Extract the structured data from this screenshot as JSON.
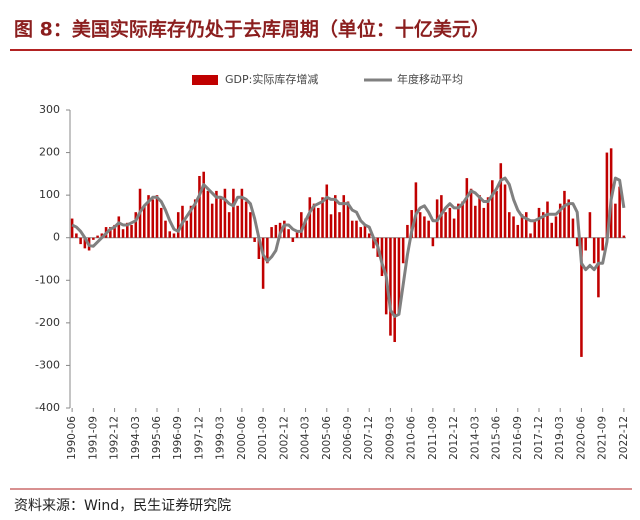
{
  "chart_data": {
    "type": "bar",
    "title": "图 8：美国实际库存仍处于去库周期（单位：十亿美元）",
    "source": "资料来源：Wind，民生证券研究院",
    "categories": [
      "1990-06",
      null,
      null,
      null,
      null,
      "1991-09",
      null,
      null,
      null,
      null,
      "1992-12",
      null,
      null,
      null,
      null,
      "1994-03",
      null,
      null,
      null,
      null,
      "1995-06",
      null,
      null,
      null,
      null,
      "1996-09",
      null,
      null,
      null,
      null,
      "1997-12",
      null,
      null,
      null,
      null,
      "1999-03",
      null,
      null,
      null,
      null,
      "2000-06",
      null,
      null,
      null,
      null,
      "2001-09",
      null,
      null,
      null,
      null,
      "2002-12",
      null,
      null,
      null,
      null,
      "2004-03",
      null,
      null,
      null,
      null,
      "2005-06",
      null,
      null,
      null,
      null,
      "2006-09",
      null,
      null,
      null,
      null,
      "2007-12",
      null,
      null,
      null,
      null,
      "2009-03",
      null,
      null,
      null,
      null,
      "2010-06",
      null,
      null,
      null,
      null,
      "2011-09",
      null,
      null,
      null,
      null,
      "2012-12",
      null,
      null,
      null,
      null,
      "2014-03",
      null,
      null,
      null,
      null,
      "2015-06",
      null,
      null,
      null,
      null,
      "2016-09",
      null,
      null,
      null,
      null,
      "2017-12",
      null,
      null,
      null,
      null,
      "2019-03",
      null,
      null,
      null,
      null,
      "2020-06",
      null,
      null,
      null,
      null,
      "2021-09",
      null,
      null,
      null,
      null,
      "2022-12"
    ],
    "series": [
      {
        "name": "GDP:实际库存增减",
        "type": "bar",
        "color": "#c00000",
        "values": [
          45,
          10,
          -15,
          -25,
          -30,
          -5,
          5,
          10,
          25,
          25,
          30,
          50,
          20,
          35,
          30,
          60,
          115,
          75,
          100,
          90,
          100,
          70,
          40,
          15,
          10,
          60,
          75,
          40,
          75,
          90,
          145,
          155,
          110,
          80,
          110,
          95,
          115,
          60,
          115,
          75,
          115,
          85,
          60,
          -10,
          -50,
          -120,
          -60,
          25,
          30,
          35,
          40,
          20,
          -10,
          15,
          60,
          45,
          95,
          80,
          70,
          95,
          125,
          55,
          100,
          60,
          100,
          85,
          40,
          40,
          25,
          30,
          10,
          -25,
          -45,
          -90,
          -180,
          -230,
          -245,
          -180,
          -60,
          30,
          65,
          130,
          60,
          50,
          40,
          -20,
          90,
          100,
          60,
          70,
          45,
          80,
          85,
          140,
          115,
          75,
          100,
          70,
          95,
          135,
          110,
          175,
          125,
          60,
          50,
          30,
          55,
          60,
          10,
          40,
          70,
          60,
          85,
          35,
          50,
          80,
          110,
          90,
          45,
          -20,
          -280,
          -30,
          60,
          -60,
          -140,
          -30,
          200,
          210,
          80,
          120,
          5
        ]
      },
      {
        "name": "年度移动平均",
        "type": "line",
        "color": "#808080",
        "values": [
          30,
          25,
          15,
          0,
          -18,
          -20,
          -10,
          0,
          10,
          20,
          25,
          35,
          30,
          30,
          35,
          40,
          60,
          75,
          85,
          95,
          95,
          85,
          65,
          40,
          20,
          15,
          35,
          50,
          65,
          80,
          100,
          125,
          115,
          105,
          95,
          95,
          90,
          80,
          75,
          95,
          95,
          90,
          80,
          45,
          0,
          -40,
          -55,
          -45,
          -30,
          10,
          30,
          30,
          20,
          15,
          15,
          40,
          60,
          75,
          80,
          85,
          95,
          90,
          90,
          80,
          80,
          80,
          65,
          60,
          40,
          30,
          25,
          0,
          -20,
          -60,
          -90,
          -170,
          -185,
          -180,
          -110,
          -40,
          15,
          55,
          70,
          75,
          60,
          40,
          40,
          55,
          70,
          80,
          70,
          70,
          80,
          95,
          110,
          105,
          95,
          85,
          85,
          100,
          115,
          135,
          140,
          125,
          90,
          65,
          50,
          45,
          40,
          40,
          45,
          50,
          55,
          55,
          55,
          65,
          75,
          80,
          80,
          60,
          -60,
          -75,
          -65,
          -75,
          -60,
          -60,
          -10,
          90,
          140,
          135,
          70
        ]
      }
    ],
    "ylim": [
      -400,
      300
    ],
    "yticks": [
      -400,
      -300,
      -200,
      -100,
      0,
      100,
      200,
      300
    ],
    "grid": false
  }
}
